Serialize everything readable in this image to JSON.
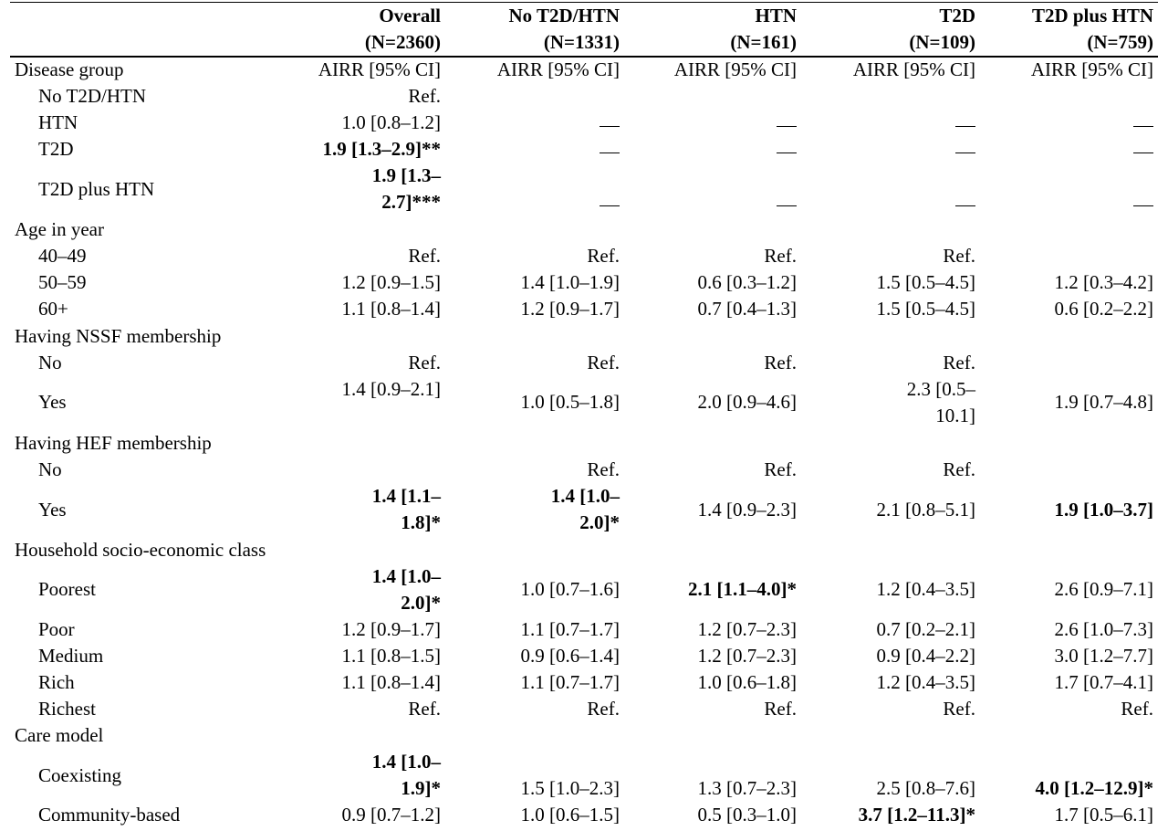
{
  "columns": [
    {
      "name": "Overall",
      "n": "(N=2360)"
    },
    {
      "name": "No T2D/HTN",
      "n": "(N=1331)"
    },
    {
      "name": "HTN",
      "n": "(N=161)"
    },
    {
      "name": "T2D",
      "n": "(N=109)"
    },
    {
      "name": "T2D plus HTN",
      "n": "(N=759)"
    }
  ],
  "rows": {
    "disease_group": {
      "label": "Disease group",
      "c1": "AIRR [95% CI]",
      "c2": "AIRR [95% CI]",
      "c3": "AIRR [95% CI]",
      "c4": "AIRR [95% CI]",
      "c5": "AIRR [95% CI]"
    },
    "no_t2d_htn": {
      "label": "No T2D/HTN",
      "c1": "Ref."
    },
    "htn": {
      "label": "HTN",
      "c1": "1.0 [0.8–1.2]"
    },
    "t2d": {
      "label": "T2D",
      "c1": "1.9 [1.3–2.9]**"
    },
    "t2d_htn": {
      "label": "T2D plus HTN",
      "c1a": "1.9 [1.3–",
      "c1b": "2.7]***"
    },
    "age": {
      "label": "Age in year"
    },
    "age_40": {
      "label": "40–49",
      "c1": "Ref.",
      "c2": "Ref.",
      "c3": "Ref.",
      "c4": "Ref."
    },
    "age_50": {
      "label": "50–59",
      "c1": "1.2 [0.9–1.5]",
      "c2": "1.4 [1.0–1.9]",
      "c3": "0.6 [0.3–1.2]",
      "c4": "1.5 [0.5–4.5]",
      "c5": "1.2 [0.3–4.2]"
    },
    "age_60": {
      "label": "60+",
      "c1": "1.1 [0.8–1.4]",
      "c2": "1.2 [0.9–1.7]",
      "c3": "0.7 [0.4–1.3]",
      "c4": "1.5 [0.5–4.5]",
      "c5": "0.6 [0.2–2.2]"
    },
    "nssf": {
      "label": "Having NSSF membership"
    },
    "nssf_no": {
      "label": "No",
      "c1": "Ref.",
      "c2": "Ref.",
      "c3": "Ref.",
      "c4": "Ref."
    },
    "nssf_yes": {
      "label": "Yes",
      "c1": "1.4 [0.9–2.1]",
      "c2": "1.0 [0.5–1.8]",
      "c3": "2.0 [0.9–4.6]",
      "c4a": "2.3 [0.5–",
      "c4b": "10.1]",
      "c5": "1.9 [0.7–4.8]"
    },
    "hef": {
      "label": "Having HEF membership"
    },
    "hef_no": {
      "label": "No",
      "c2": "Ref.",
      "c3": "Ref.",
      "c4": "Ref."
    },
    "hef_yes": {
      "label": "Yes",
      "c1a": "1.4 [1.1–",
      "c1b": "1.8]*",
      "c2a": "1.4 [1.0–",
      "c2b": "2.0]*",
      "c3": "1.4 [0.9–2.3]",
      "c4": "2.1 [0.8–5.1]",
      "c5": "1.9 [1.0–3.7]"
    },
    "ses": {
      "label": "Household socio-economic class"
    },
    "poorest": {
      "label": "Poorest",
      "c1a": "1.4 [1.0–",
      "c1b": "2.0]*",
      "c2": "1.0 [0.7–1.6]",
      "c3": "2.1 [1.1–4.0]*",
      "c4": "1.2 [0.4–3.5]",
      "c5": "2.6 [0.9–7.1]"
    },
    "poor": {
      "label": "Poor",
      "c1": "1.2 [0.9–1.7]",
      "c2": "1.1 [0.7–1.7]",
      "c3": "1.2 [0.7–2.3]",
      "c4": "0.7 [0.2–2.1]",
      "c5": "2.6 [1.0–7.3]"
    },
    "medium": {
      "label": "Medium",
      "c1": "1.1 [0.8–1.5]",
      "c2": "0.9 [0.6–1.4]",
      "c3": "1.2 [0.7–2.3]",
      "c4": "0.9 [0.4–2.2]",
      "c5": "3.0 [1.2–7.7]"
    },
    "rich": {
      "label": "Rich",
      "c1": "1.1 [0.8–1.4]",
      "c2": "1.1 [0.7–1.7]",
      "c3": "1.0 [0.6–1.8]",
      "c4": "1.2 [0.4–3.5]",
      "c5": "1.7 [0.7–4.1]"
    },
    "richest": {
      "label": "Richest",
      "c1": "Ref.",
      "c2": "Ref.",
      "c3": "Ref.",
      "c4": "Ref.",
      "c5": "Ref."
    },
    "care": {
      "label": "Care model"
    },
    "coexisting": {
      "label": "Coexisting",
      "c1a": "1.4 [1.0–",
      "c1b": "1.9]*",
      "c2": "1.5 [1.0–2.3]",
      "c3": "1.3 [0.7–2.3]",
      "c4": "2.5 [0.8–7.6]",
      "c5": "4.0 [1.2–12.9]*"
    },
    "community": {
      "label": "Community-based",
      "c1": "0.9 [0.7–1.2]",
      "c2": "1.0 [0.6–1.5]",
      "c3": "0.5 [0.3–1.0]",
      "c4": "3.7 [1.2–11.3]*",
      "c5": "1.7 [0.5–6.1]"
    }
  }
}
